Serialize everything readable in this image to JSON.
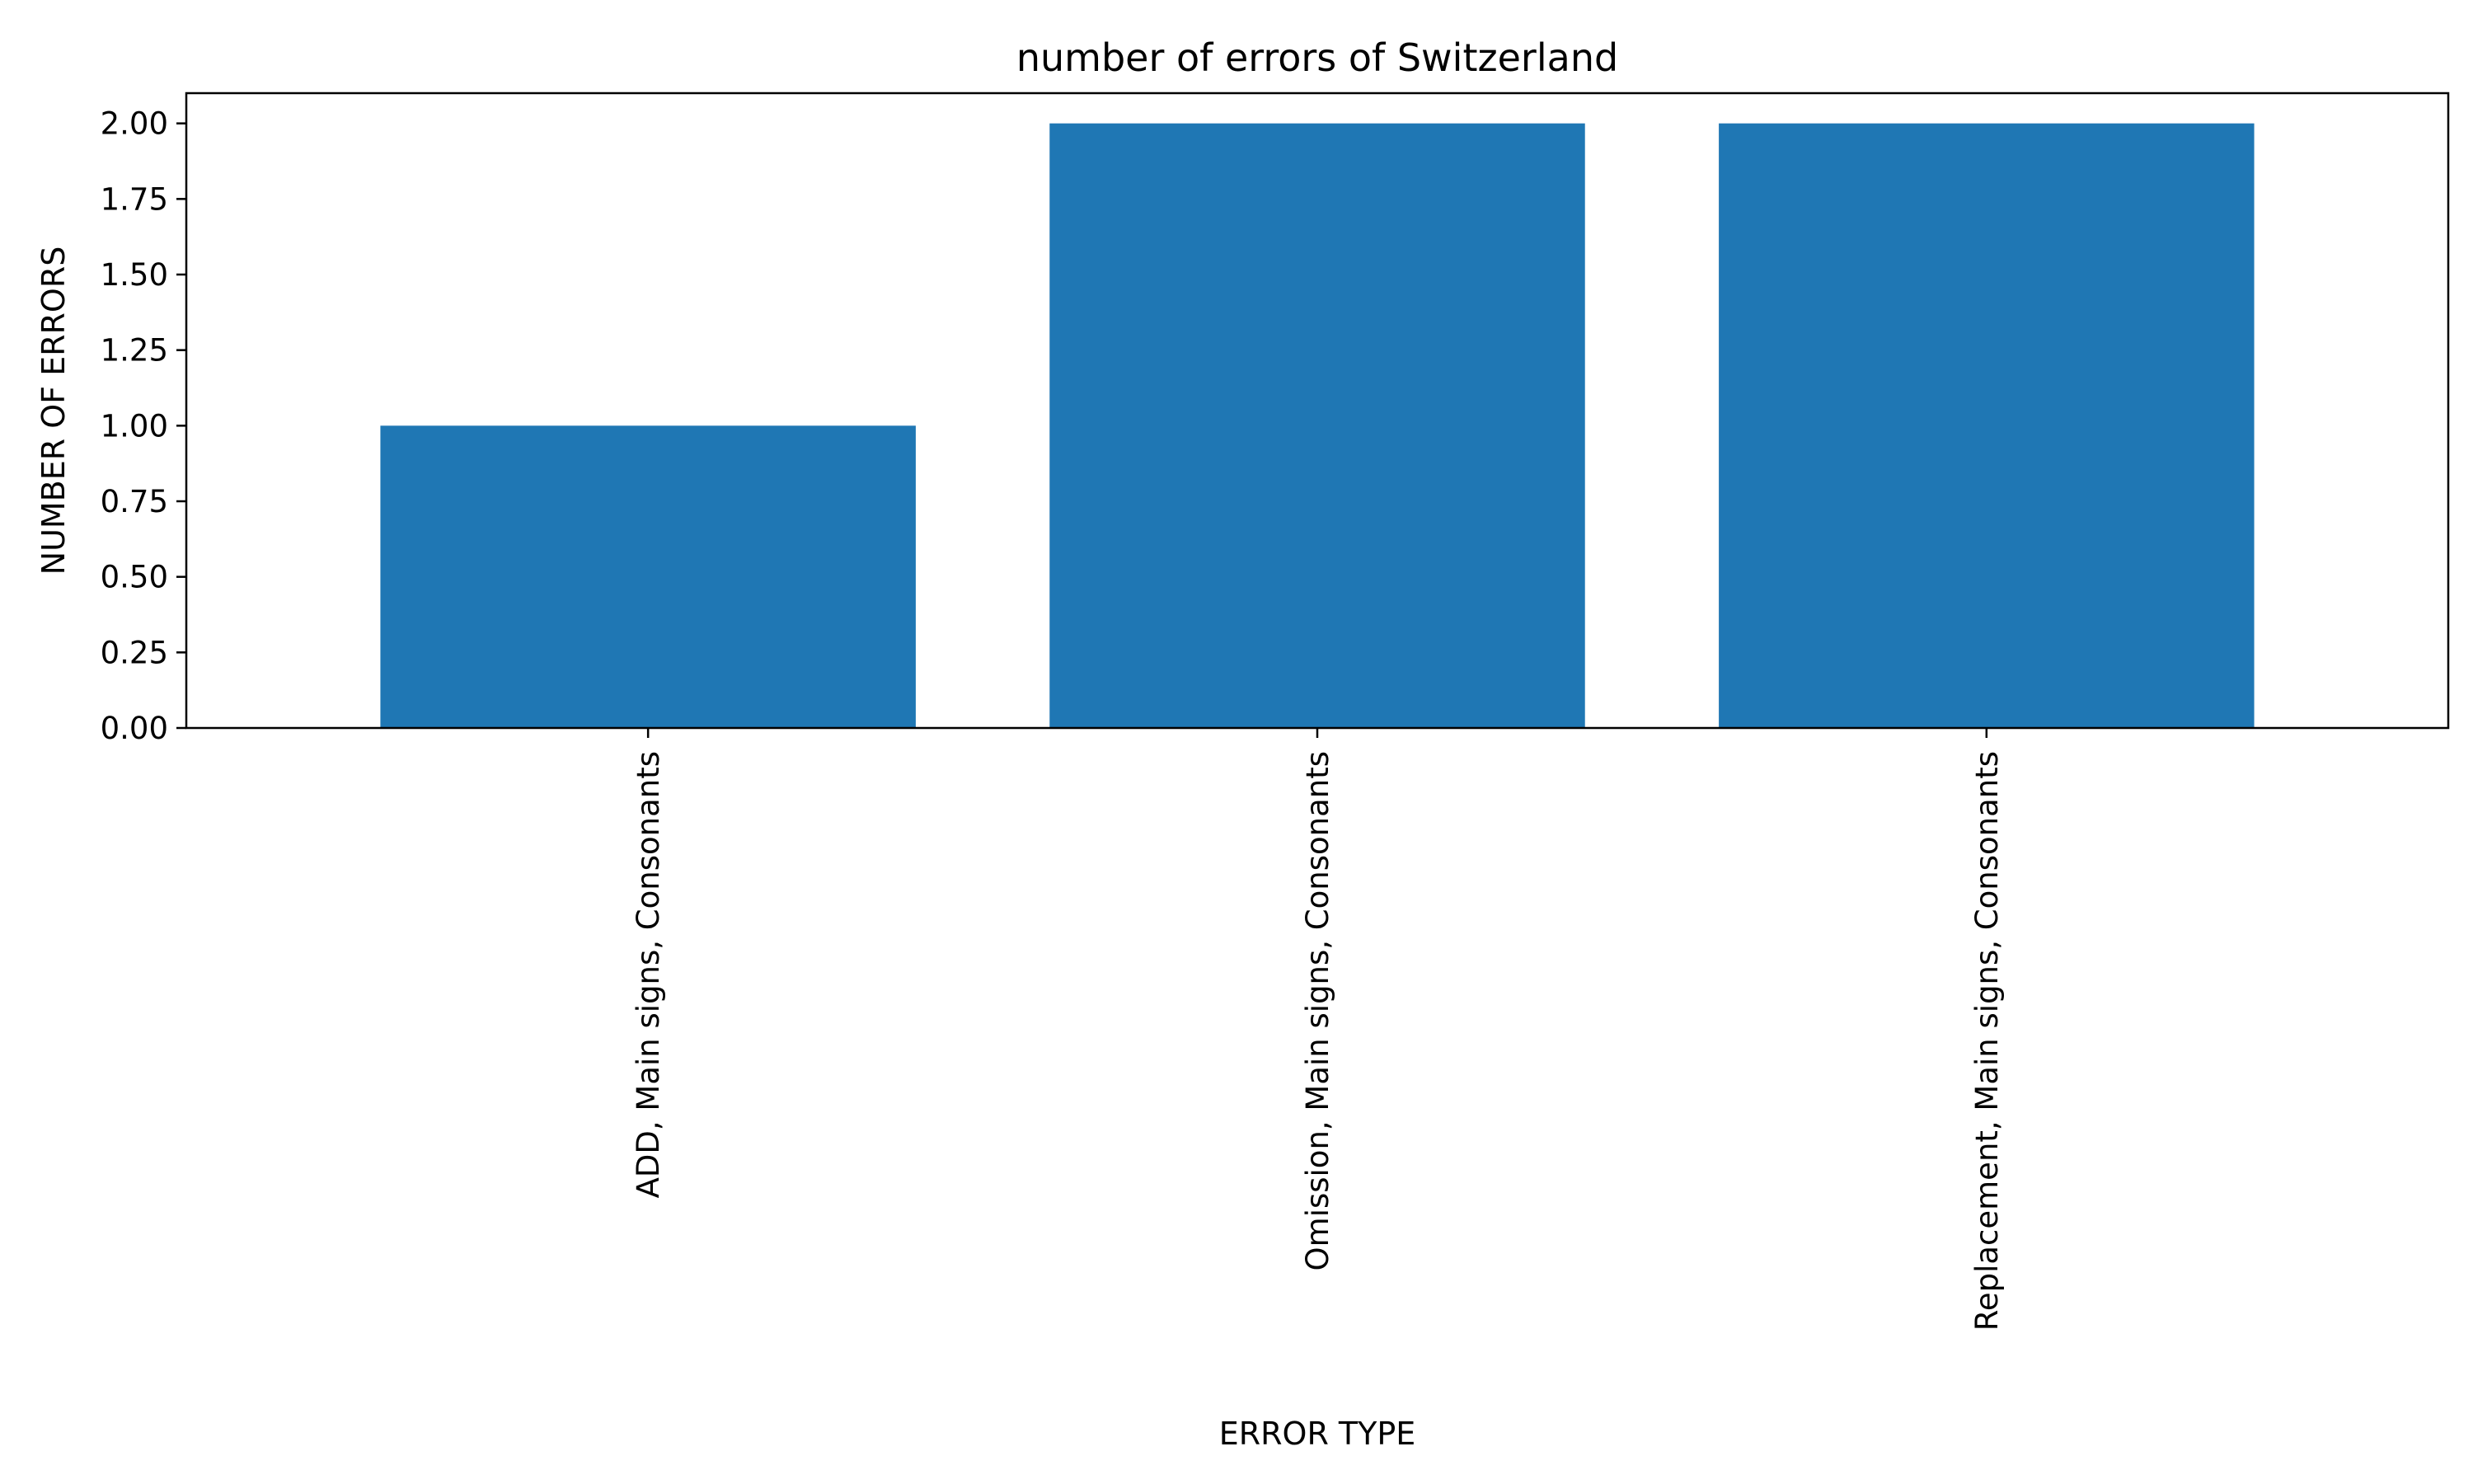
{
  "chart_data": {
    "type": "bar",
    "title": "number of errors of Switzerland",
    "xlabel": "ERROR TYPE",
    "ylabel": "NUMBER OF ERRORS",
    "categories": [
      "ADD, Main signs, Consonants",
      "Omission, Main signs, Consonants",
      "Replacement, Main signs, Consonants"
    ],
    "values": [
      1,
      2,
      2
    ],
    "ylim": [
      0,
      2.1
    ],
    "yticks": [
      "0.00",
      "0.25",
      "0.50",
      "0.75",
      "1.00",
      "1.25",
      "1.50",
      "1.75",
      "2.00"
    ],
    "ytick_values": [
      0,
      0.25,
      0.5,
      0.75,
      1.0,
      1.25,
      1.5,
      1.75,
      2.0
    ],
    "bar_color": "#1f77b4",
    "grid": false,
    "legend": "none"
  }
}
